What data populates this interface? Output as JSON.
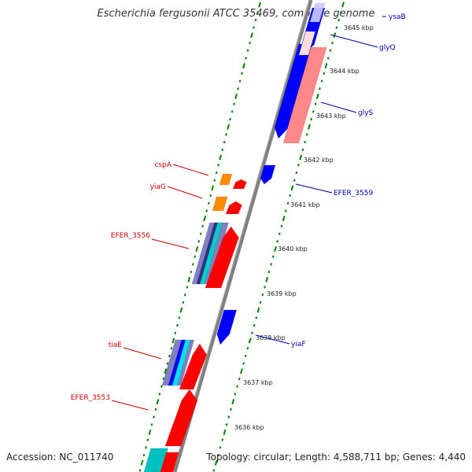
{
  "title": "Escherichia fergusonii ATCC 35469, complete genome",
  "footer": {
    "accession": "Accession: NC_011740",
    "summary": "Topology: circular; Length: 4,588,711 bp; Genes: 4,440"
  },
  "colors": {
    "forward_gene": "#ff0000",
    "reverse_gene": "#0000ff",
    "rrna": "#ff8888",
    "trna": "#ff8c00",
    "backbone": "#808080",
    "gc_dots": "#008000",
    "forward_label": "#cc0000",
    "reverse_label": "#0000aa"
  },
  "scale": {
    "unit": "kbp",
    "ticks": [
      "3636 kbp",
      "3637 kbp",
      "3638 kbp",
      "3639 kbp",
      "3640 kbp",
      "3641 kbp",
      "3642 kbp",
      "3643 kbp",
      "3644 kbp",
      "3645 kbp"
    ]
  },
  "labels": {
    "forward": [
      "cspA",
      "yiaG",
      "EFER_3556",
      "tiaE",
      "EFER_3553"
    ],
    "reverse": [
      "ysaB",
      "glyQ",
      "glyS",
      "EFER_3559",
      "yiaF"
    ]
  }
}
